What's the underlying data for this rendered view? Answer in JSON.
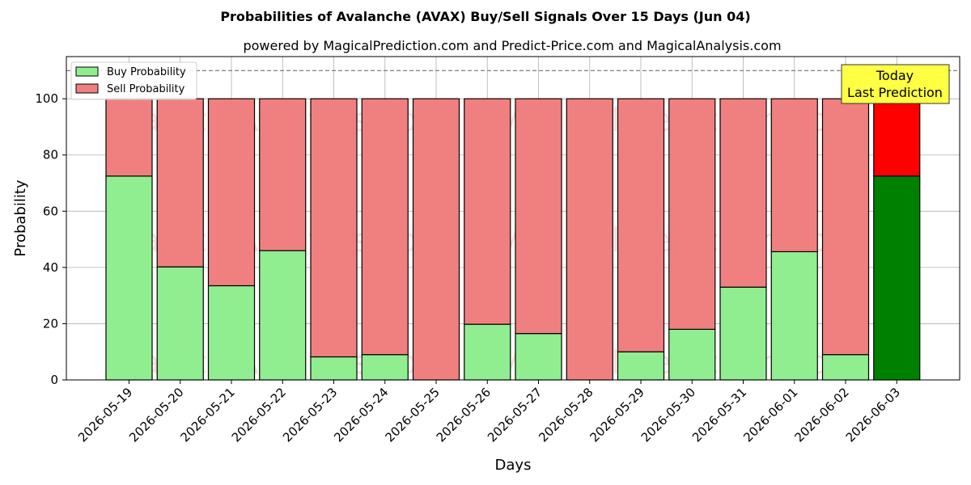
{
  "chart_data": {
    "type": "bar",
    "stacked": true,
    "title": "Probabilities of Avalanche (AVAX) Buy/Sell Signals Over 15 Days (Jun 04)",
    "subtitle": "powered by MagicalPrediction.com and Predict-Price.com and MagicalAnalysis.com",
    "xlabel": "Days",
    "ylabel": "Probability",
    "ylim": [
      0,
      115
    ],
    "yticks": [
      0,
      20,
      40,
      60,
      80,
      100
    ],
    "grid": true,
    "legend_position": "top-left",
    "reference_line": 110,
    "categories": [
      "2026-05-19",
      "2026-05-20",
      "2026-05-21",
      "2026-05-22",
      "2026-05-23",
      "2026-05-24",
      "2026-05-25",
      "2026-05-26",
      "2026-05-27",
      "2026-05-28",
      "2026-05-29",
      "2026-05-30",
      "2026-05-31",
      "2026-06-01",
      "2026-06-02",
      "2026-06-03"
    ],
    "series": [
      {
        "name": "Buy Probability",
        "color": "#90ee90",
        "values": [
          72.5,
          40.2,
          33.5,
          46.0,
          8.2,
          9.0,
          0.0,
          19.8,
          16.5,
          0.0,
          10.0,
          18.0,
          33.0,
          45.6,
          9.0,
          72.5
        ]
      },
      {
        "name": "Sell Probability",
        "color": "#f08080",
        "values": [
          27.5,
          59.8,
          66.5,
          54.0,
          91.8,
          91.0,
          100.0,
          80.2,
          83.5,
          100.0,
          90.0,
          82.0,
          67.0,
          54.4,
          91.0,
          27.5
        ]
      }
    ],
    "highlight": {
      "index": 15,
      "buy_color": "#008000",
      "sell_color": "#ff0000"
    },
    "annotation": {
      "lines": [
        "Today",
        "Last Prediction"
      ],
      "color": "#ffff44"
    },
    "watermarks": [
      "MagicalAnalysis.com",
      "MagicalPrediction.com"
    ]
  }
}
